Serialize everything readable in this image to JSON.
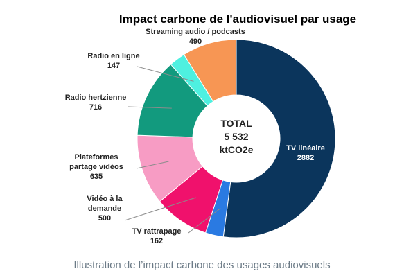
{
  "chart_data": {
    "type": "pie",
    "title": "Impact carbone de l'audiovisuel par usage",
    "center_label": [
      "TOTAL",
      "5 532",
      "ktCO2e"
    ],
    "unit": "ktCO2e",
    "total": 5532,
    "slices": [
      {
        "label_lines": [
          "TV linéaire",
          "2882"
        ],
        "value": 2882,
        "color": "#0b355c"
      },
      {
        "label_lines": [
          "TV rattrapage",
          "162"
        ],
        "value": 162,
        "color": "#2a7ae2"
      },
      {
        "label_lines": [
          "Vidéo à la",
          "demande",
          "500"
        ],
        "value": 500,
        "color": "#f0116c"
      },
      {
        "label_lines": [
          "Plateformes",
          "partage vidéos",
          "635"
        ],
        "value": 635,
        "color": "#f79cc4"
      },
      {
        "label_lines": [
          "Radio hertzienne",
          "716"
        ],
        "value": 716,
        "color": "#129a7e"
      },
      {
        "label_lines": [
          "Radio en ligne",
          "147"
        ],
        "value": 147,
        "color": "#4ef0e0"
      },
      {
        "label_lines": [
          "Streaming audio / podcasts",
          "490"
        ],
        "value": 490,
        "color": "#f79654"
      }
    ]
  },
  "caption": "Illustration de l’impact carbone des usages audiovisuels"
}
